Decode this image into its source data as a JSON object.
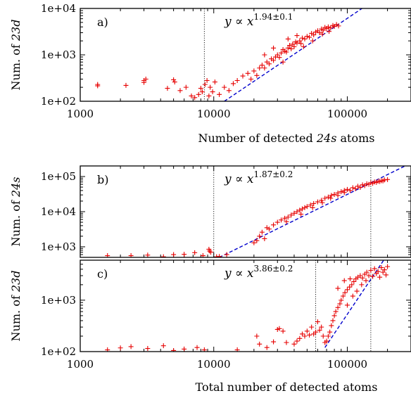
{
  "chart_data": [
    {
      "type": "scatter",
      "panel_label": "a)",
      "ylabel_prefix": "Num. of ",
      "ylabel_var": "23d",
      "xlabel_prefix": "Number of detected ",
      "xlabel_var": "24s",
      "xlabel_suffix": " atoms",
      "xscale": "log",
      "yscale": "log",
      "xlim": [
        1000,
        300000
      ],
      "ylim": [
        100,
        10000
      ],
      "xticks": [
        "1000",
        "10000",
        "100000"
      ],
      "yticks": [
        "1e+02",
        "1e+03",
        "1e+04"
      ],
      "annotation": {
        "prefix": "y ∝ x",
        "exponent": "1.94±0.1"
      },
      "fit": {
        "exponent": 1.94,
        "ref_x": 12000,
        "ref_y": 100
      },
      "vlines": [
        8500
      ],
      "marker_color": "#e60000",
      "fit_color": "#0000cc",
      "points": [
        [
          1350,
          230
        ],
        [
          1350,
          215
        ],
        [
          2200,
          220
        ],
        [
          3000,
          280
        ],
        [
          3100,
          300
        ],
        [
          3000,
          255
        ],
        [
          4500,
          190
        ],
        [
          5000,
          290
        ],
        [
          5100,
          260
        ],
        [
          5600,
          170
        ],
        [
          6200,
          200
        ],
        [
          6800,
          130
        ],
        [
          7200,
          120
        ],
        [
          7700,
          140
        ],
        [
          8000,
          190
        ],
        [
          8200,
          160
        ],
        [
          8600,
          230
        ],
        [
          8900,
          280
        ],
        [
          9200,
          130
        ],
        [
          9400,
          200
        ],
        [
          9800,
          160
        ],
        [
          10200,
          260
        ],
        [
          11000,
          140
        ],
        [
          12000,
          200
        ],
        [
          13000,
          170
        ],
        [
          14000,
          240
        ],
        [
          15000,
          280
        ],
        [
          16500,
          350
        ],
        [
          18000,
          400
        ],
        [
          19000,
          300
        ],
        [
          20000,
          450
        ],
        [
          21000,
          360
        ],
        [
          22000,
          520
        ],
        [
          23000,
          600
        ],
        [
          24000,
          520
        ],
        [
          25000,
          700
        ],
        [
          26000,
          640
        ],
        [
          27000,
          820
        ],
        [
          28000,
          760
        ],
        [
          29000,
          900
        ],
        [
          30000,
          1000
        ],
        [
          31000,
          880
        ],
        [
          32000,
          1100
        ],
        [
          33000,
          1300
        ],
        [
          34000,
          1200
        ],
        [
          35000,
          1150
        ],
        [
          36000,
          1400
        ],
        [
          37000,
          1600
        ],
        [
          38000,
          1350
        ],
        [
          39000,
          1700
        ],
        [
          40000,
          1500
        ],
        [
          41000,
          1900
        ],
        [
          42000,
          1800
        ],
        [
          44000,
          2000
        ],
        [
          45000,
          1750
        ],
        [
          46000,
          2300
        ],
        [
          48000,
          2200
        ],
        [
          50000,
          2500
        ],
        [
          52000,
          2400
        ],
        [
          54000,
          2900
        ],
        [
          56000,
          2700
        ],
        [
          58000,
          3100
        ],
        [
          60000,
          3300
        ],
        [
          62000,
          3000
        ],
        [
          64000,
          3600
        ],
        [
          66000,
          3400
        ],
        [
          68000,
          3900
        ],
        [
          70000,
          3700
        ],
        [
          72000,
          4000
        ],
        [
          75000,
          3800
        ],
        [
          78000,
          4300
        ],
        [
          80000,
          4100
        ],
        [
          83000,
          4500
        ],
        [
          86000,
          4200
        ],
        [
          36000,
          2200
        ],
        [
          42000,
          2600
        ],
        [
          28000,
          1400
        ],
        [
          24000,
          1000
        ],
        [
          33000,
          700
        ],
        [
          47000,
          1500
        ],
        [
          55000,
          2000
        ],
        [
          65000,
          2800
        ],
        [
          73000,
          3200
        ]
      ]
    },
    {
      "type": "scatter",
      "panel_label": "b)",
      "ylabel_prefix": "Num. of ",
      "ylabel_var": "24s",
      "xscale": "log",
      "yscale": "log",
      "xlim": [
        1000,
        300000
      ],
      "ylim": [
        500,
        200000
      ],
      "xticks": [],
      "yticks": [
        "1e+03",
        "1e+04",
        "1e+05"
      ],
      "annotation": {
        "prefix": "y ∝ x",
        "exponent": "1.87±0.2"
      },
      "fit": {
        "exponent": 1.87,
        "ref_x": 11000,
        "ref_y": 500
      },
      "vlines": [
        10000,
        150000
      ],
      "marker_color": "#e60000",
      "fit_color": "#0000cc",
      "points": [
        [
          1600,
          560
        ],
        [
          2400,
          560
        ],
        [
          3200,
          580
        ],
        [
          4200,
          520
        ],
        [
          5000,
          600
        ],
        [
          6000,
          610
        ],
        [
          7200,
          680
        ],
        [
          8300,
          560
        ],
        [
          9200,
          850
        ],
        [
          9300,
          760
        ],
        [
          9500,
          700
        ],
        [
          10500,
          520
        ],
        [
          11000,
          530
        ],
        [
          12500,
          600
        ],
        [
          20000,
          1300
        ],
        [
          21000,
          1500
        ],
        [
          22000,
          2000
        ],
        [
          23000,
          2600
        ],
        [
          24000,
          1700
        ],
        [
          25000,
          3500
        ],
        [
          26000,
          3200
        ],
        [
          28000,
          4200
        ],
        [
          30000,
          5000
        ],
        [
          32000,
          5800
        ],
        [
          34000,
          6500
        ],
        [
          36000,
          7000
        ],
        [
          38000,
          8000
        ],
        [
          40000,
          9000
        ],
        [
          42000,
          10000
        ],
        [
          44000,
          11000
        ],
        [
          46000,
          12000
        ],
        [
          48000,
          13000
        ],
        [
          50000,
          14000
        ],
        [
          53000,
          15500
        ],
        [
          56000,
          17000
        ],
        [
          60000,
          19000
        ],
        [
          64000,
          21000
        ],
        [
          68000,
          24000
        ],
        [
          72000,
          26000
        ],
        [
          76000,
          29000
        ],
        [
          80000,
          31000
        ],
        [
          85000,
          34000
        ],
        [
          90000,
          37000
        ],
        [
          95000,
          40000
        ],
        [
          100000,
          43000
        ],
        [
          110000,
          48000
        ],
        [
          120000,
          53000
        ],
        [
          130000,
          58000
        ],
        [
          140000,
          62000
        ],
        [
          150000,
          66000
        ],
        [
          160000,
          70000
        ],
        [
          170000,
          73000
        ],
        [
          180000,
          76000
        ],
        [
          190000,
          80000
        ],
        [
          200000,
          82000
        ],
        [
          35000,
          5200
        ],
        [
          45000,
          8500
        ],
        [
          55000,
          13000
        ],
        [
          65000,
          18000
        ],
        [
          75000,
          24000
        ],
        [
          85000,
          29000
        ],
        [
          95000,
          35000
        ],
        [
          105000,
          40000
        ],
        [
          115000,
          45000
        ],
        [
          125000,
          49000
        ],
        [
          135000,
          55000
        ],
        [
          145000,
          60000
        ],
        [
          155000,
          64000
        ],
        [
          165000,
          68000
        ],
        [
          175000,
          72000
        ],
        [
          185000,
          75000
        ]
      ]
    },
    {
      "type": "scatter",
      "panel_label": "c)",
      "ylabel_prefix": "Num. of ",
      "ylabel_var": "23d",
      "xlabel_prefix": "Total number of detected atoms",
      "xlabel_var": "",
      "xlabel_suffix": "",
      "xscale": "log",
      "yscale": "log",
      "xlim": [
        1000,
        300000
      ],
      "ylim": [
        100,
        6000
      ],
      "xticks": [
        "1000",
        "10000",
        "100000"
      ],
      "yticks": [
        "1e+02",
        "1e+03"
      ],
      "annotation": {
        "prefix": "y ∝ x",
        "exponent": "3.86±0.2"
      },
      "fit": {
        "exponent": 3.86,
        "ref_x": 68000,
        "ref_y": 120
      },
      "vlines": [
        58000,
        150000
      ],
      "marker_color": "#e60000",
      "fit_color": "#0000cc",
      "points": [
        [
          1600,
          108
        ],
        [
          2000,
          118
        ],
        [
          2400,
          125
        ],
        [
          3200,
          115
        ],
        [
          4200,
          130
        ],
        [
          5000,
          105
        ],
        [
          6000,
          112
        ],
        [
          7500,
          120
        ],
        [
          8500,
          108
        ],
        [
          15000,
          108
        ],
        [
          21000,
          200
        ],
        [
          22000,
          140
        ],
        [
          25000,
          120
        ],
        [
          28000,
          155
        ],
        [
          30000,
          270
        ],
        [
          31000,
          280
        ],
        [
          33000,
          250
        ],
        [
          35000,
          150
        ],
        [
          40000,
          140
        ],
        [
          42000,
          160
        ],
        [
          44000,
          180
        ],
        [
          46000,
          220
        ],
        [
          48000,
          200
        ],
        [
          50000,
          250
        ],
        [
          52000,
          210
        ],
        [
          54000,
          300
        ],
        [
          56000,
          220
        ],
        [
          58000,
          240
        ],
        [
          60000,
          380
        ],
        [
          62000,
          260
        ],
        [
          64000,
          300
        ],
        [
          66000,
          200
        ],
        [
          68000,
          150
        ],
        [
          70000,
          160
        ],
        [
          72000,
          200
        ],
        [
          74000,
          240
        ],
        [
          76000,
          320
        ],
        [
          78000,
          400
        ],
        [
          80000,
          500
        ],
        [
          82000,
          600
        ],
        [
          85000,
          720
        ],
        [
          88000,
          850
        ],
        [
          90000,
          1000
        ],
        [
          93000,
          1200
        ],
        [
          96000,
          1400
        ],
        [
          100000,
          1600
        ],
        [
          104000,
          1800
        ],
        [
          108000,
          2000
        ],
        [
          112000,
          2300
        ],
        [
          116000,
          2600
        ],
        [
          120000,
          2800
        ],
        [
          125000,
          3000
        ],
        [
          130000,
          2700
        ],
        [
          135000,
          3200
        ],
        [
          140000,
          3500
        ],
        [
          145000,
          3000
        ],
        [
          150000,
          3800
        ],
        [
          160000,
          4100
        ],
        [
          170000,
          3600
        ],
        [
          180000,
          4300
        ],
        [
          190000,
          3900
        ],
        [
          200000,
          4500
        ],
        [
          85000,
          1700
        ],
        [
          95000,
          2400
        ],
        [
          105000,
          2600
        ],
        [
          100000,
          800
        ],
        [
          110000,
          1200
        ],
        [
          118000,
          1500
        ],
        [
          128000,
          2000
        ],
        [
          138000,
          2400
        ],
        [
          155000,
          2900
        ],
        [
          165000,
          3300
        ],
        [
          175000,
          2800
        ],
        [
          185000,
          3500
        ],
        [
          195000,
          3100
        ]
      ]
    }
  ]
}
